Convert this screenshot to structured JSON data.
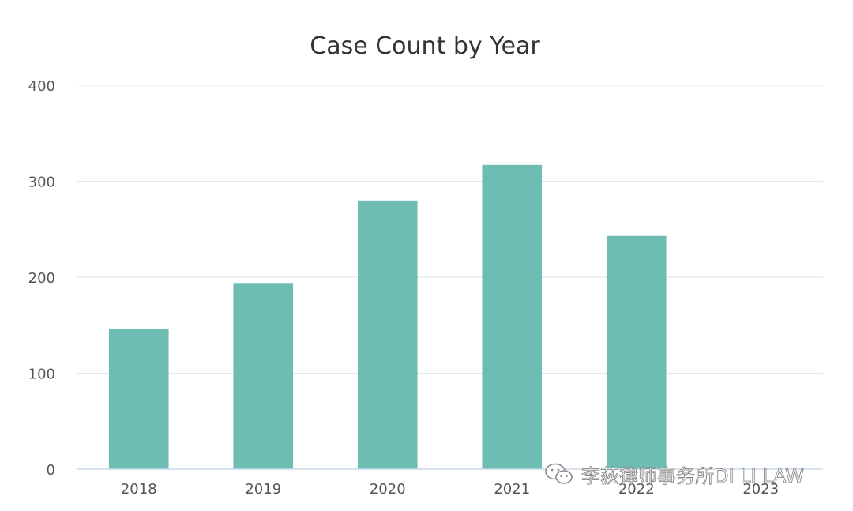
{
  "chart_data": {
    "type": "bar",
    "title": "Case Count by Year",
    "xlabel": "",
    "ylabel": "",
    "categories": [
      "2018",
      "2019",
      "2020",
      "2021",
      "2022",
      "2023"
    ],
    "values": [
      146,
      194,
      280,
      317,
      243,
      0
    ],
    "ylim": [
      0,
      400
    ],
    "yticks": [
      0,
      100,
      200,
      300,
      400
    ],
    "grid": true,
    "legend": "none",
    "bar_color": "#6dbdb3",
    "gridline_color": "#e3e6ea",
    "baseline_color": "#c9d8ea"
  },
  "watermark": {
    "text": "李荻律师事务所DI LI LAW",
    "icon": "wechat-icon"
  }
}
